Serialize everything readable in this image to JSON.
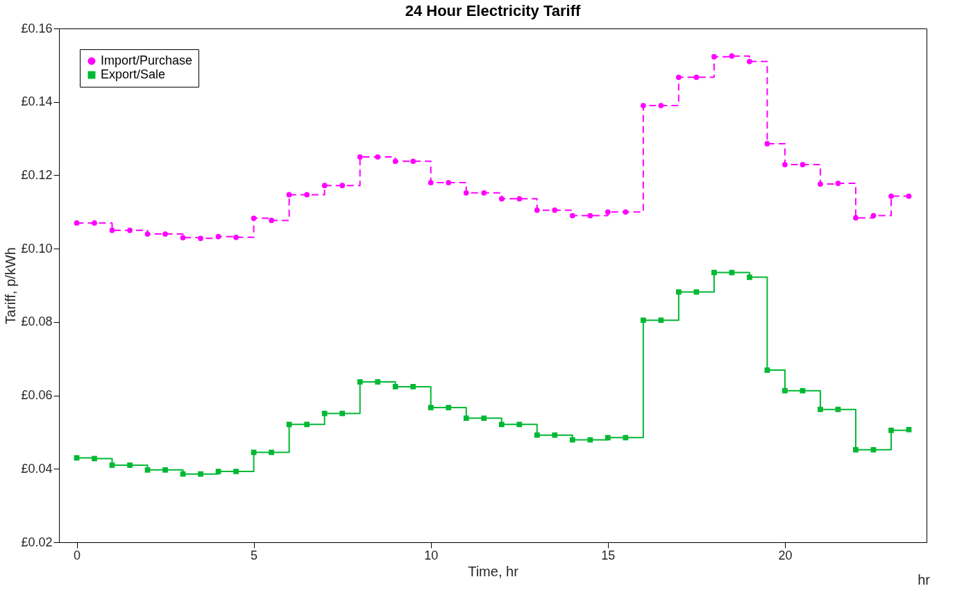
{
  "chart_data": {
    "type": "step",
    "title": "24 Hour Electricity Tariff",
    "xlabel": "Time, hr",
    "ylabel": "Tariff, p/kWh",
    "annotations": [
      "hr"
    ],
    "x": [
      0,
      0.5,
      1,
      1.5,
      2,
      2.5,
      3,
      3.5,
      4,
      4.5,
      5,
      5.5,
      6,
      6.5,
      7,
      7.5,
      8,
      8.5,
      9,
      9.5,
      10,
      10.5,
      11,
      11.5,
      12,
      12.5,
      13,
      13.5,
      14,
      14.5,
      15,
      15.5,
      16,
      16.5,
      17,
      17.5,
      18,
      18.5,
      19,
      19.5,
      20,
      20.5,
      21,
      21.5,
      22,
      22.5,
      23,
      23.5
    ],
    "series": [
      {
        "name": "Import/Purchase",
        "color": "#ff00ff",
        "marker": "circle",
        "line_style": "dashed",
        "values": [
          0.107,
          0.107,
          0.105,
          0.105,
          0.104,
          0.104,
          0.103,
          0.1028,
          0.1033,
          0.1031,
          0.1083,
          0.1077,
          0.1147,
          0.1147,
          0.1172,
          0.1172,
          0.125,
          0.125,
          0.1238,
          0.1238,
          0.118,
          0.118,
          0.1152,
          0.1152,
          0.1136,
          0.1136,
          0.1105,
          0.1105,
          0.109,
          0.109,
          0.11,
          0.11,
          0.139,
          0.139,
          0.1467,
          0.1467,
          0.1523,
          0.1525,
          0.151,
          0.1286,
          0.1229,
          0.1229,
          0.1176,
          0.1178,
          0.1084,
          0.109,
          0.1143,
          0.1143
        ]
      },
      {
        "name": "Export/Sale",
        "color": "#00b833",
        "marker": "square",
        "line_style": "solid",
        "values": [
          0.043,
          0.0428,
          0.041,
          0.041,
          0.0397,
          0.0397,
          0.0386,
          0.0386,
          0.0393,
          0.0393,
          0.0445,
          0.0445,
          0.0521,
          0.0521,
          0.0551,
          0.0551,
          0.0637,
          0.0637,
          0.0624,
          0.0624,
          0.0567,
          0.0567,
          0.0538,
          0.0538,
          0.0521,
          0.0521,
          0.0492,
          0.0492,
          0.0479,
          0.0479,
          0.0485,
          0.0485,
          0.0805,
          0.0805,
          0.0882,
          0.0882,
          0.0935,
          0.0935,
          0.0922,
          0.0669,
          0.0613,
          0.0613,
          0.0562,
          0.0562,
          0.0452,
          0.0452,
          0.0505,
          0.0507
        ]
      }
    ],
    "xlim": [
      -0.5,
      24
    ],
    "xticks": [
      0,
      5,
      10,
      15,
      20
    ],
    "ylim": [
      0.02,
      0.16
    ],
    "yticks": [
      {
        "value": 0.02,
        "label": "£0.02"
      },
      {
        "value": 0.04,
        "label": "£0.04"
      },
      {
        "value": 0.06,
        "label": "£0.06"
      },
      {
        "value": 0.08,
        "label": "£0.08"
      },
      {
        "value": 0.1,
        "label": "£0.10"
      },
      {
        "value": 0.12,
        "label": "£0.12"
      },
      {
        "value": 0.14,
        "label": "£0.14"
      },
      {
        "value": 0.16,
        "label": "£0.16"
      }
    ],
    "grid": false,
    "legend": "top left"
  }
}
